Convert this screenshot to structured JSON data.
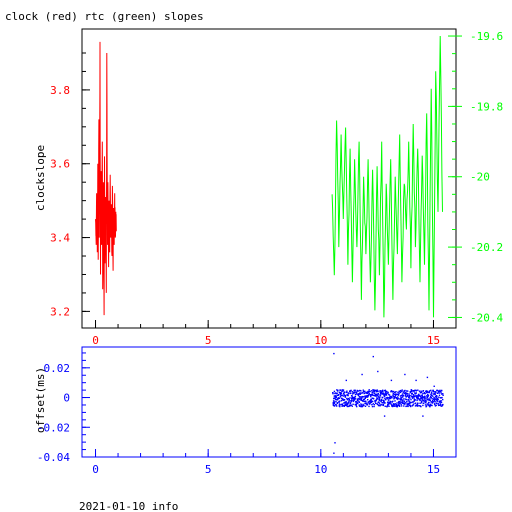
{
  "chart_data": [
    {
      "type": "line",
      "title": "clock (red) rtc (green) slopes",
      "xlabel": "",
      "ylabel": "clockslope",
      "x_ticks": [
        0,
        5,
        10,
        15
      ],
      "xlim": [
        -0.6,
        16
      ],
      "y_ticks_left": [
        3.2,
        3.4,
        3.6,
        3.8
      ],
      "ylim_left": [
        3.155,
        3.965
      ],
      "y_ticks_right": [
        -19.6,
        -19.8,
        -20,
        -20.2,
        -20.4
      ],
      "ylim_right": [
        -20.43,
        -19.58
      ],
      "grid": false,
      "legend": "none",
      "series": [
        {
          "name": "clock",
          "color": "#ff0000",
          "axis": "left",
          "x_range": [
            0,
            0.95
          ],
          "points": [
            [
              0.0,
              3.45
            ],
            [
              0.03,
              3.38
            ],
            [
              0.05,
              3.52
            ],
            [
              0.08,
              3.36
            ],
            [
              0.1,
              3.6
            ],
            [
              0.12,
              3.34
            ],
            [
              0.15,
              3.72
            ],
            [
              0.17,
              3.4
            ],
            [
              0.2,
              3.93
            ],
            [
              0.22,
              3.3
            ],
            [
              0.25,
              3.58
            ],
            [
              0.27,
              3.38
            ],
            [
              0.3,
              3.66
            ],
            [
              0.32,
              3.26
            ],
            [
              0.35,
              3.55
            ],
            [
              0.38,
              3.19
            ],
            [
              0.4,
              3.62
            ],
            [
              0.42,
              3.33
            ],
            [
              0.45,
              3.51
            ],
            [
              0.48,
              3.25
            ],
            [
              0.5,
              3.9
            ],
            [
              0.53,
              3.38
            ],
            [
              0.55,
              3.55
            ],
            [
              0.58,
              3.32
            ],
            [
              0.6,
              3.5
            ],
            [
              0.63,
              3.36
            ],
            [
              0.65,
              3.57
            ],
            [
              0.68,
              3.4
            ],
            [
              0.7,
              3.49
            ],
            [
              0.73,
              3.35
            ],
            [
              0.75,
              3.54
            ],
            [
              0.78,
              3.31
            ],
            [
              0.8,
              3.48
            ],
            [
              0.83,
              3.38
            ],
            [
              0.85,
              3.52
            ],
            [
              0.88,
              3.4
            ],
            [
              0.9,
              3.47
            ],
            [
              0.93,
              3.42
            ]
          ]
        },
        {
          "name": "rtc",
          "color": "#00ff00",
          "axis": "right",
          "x_range": [
            10.5,
            15.4
          ],
          "points": [
            [
              10.5,
              -20.05
            ],
            [
              10.6,
              -20.28
            ],
            [
              10.7,
              -19.84
            ],
            [
              10.8,
              -20.2
            ],
            [
              10.9,
              -19.88
            ],
            [
              11.0,
              -20.12
            ],
            [
              11.1,
              -19.86
            ],
            [
              11.2,
              -20.25
            ],
            [
              11.3,
              -19.92
            ],
            [
              11.4,
              -20.3
            ],
            [
              11.5,
              -19.95
            ],
            [
              11.6,
              -20.2
            ],
            [
              11.7,
              -19.9
            ],
            [
              11.8,
              -20.35
            ],
            [
              11.9,
              -20.0
            ],
            [
              12.0,
              -20.22
            ],
            [
              12.1,
              -19.95
            ],
            [
              12.2,
              -20.3
            ],
            [
              12.3,
              -19.98
            ],
            [
              12.4,
              -20.38
            ],
            [
              12.5,
              -19.97
            ],
            [
              12.6,
              -20.28
            ],
            [
              12.7,
              -19.9
            ],
            [
              12.8,
              -20.4
            ],
            [
              12.9,
              -20.02
            ],
            [
              13.0,
              -20.25
            ],
            [
              13.1,
              -19.95
            ],
            [
              13.2,
              -20.35
            ],
            [
              13.3,
              -20.0
            ],
            [
              13.4,
              -20.22
            ],
            [
              13.5,
              -19.88
            ],
            [
              13.6,
              -20.3
            ],
            [
              13.7,
              -20.02
            ],
            [
              13.8,
              -20.15
            ],
            [
              13.9,
              -19.9
            ],
            [
              14.0,
              -20.26
            ],
            [
              14.1,
              -19.85
            ],
            [
              14.2,
              -20.2
            ],
            [
              14.3,
              -19.92
            ],
            [
              14.4,
              -20.3
            ],
            [
              14.5,
              -19.94
            ],
            [
              14.6,
              -20.25
            ],
            [
              14.7,
              -19.82
            ],
            [
              14.8,
              -20.38
            ],
            [
              14.9,
              -19.75
            ],
            [
              15.0,
              -20.4
            ],
            [
              15.1,
              -19.7
            ],
            [
              15.2,
              -20.1
            ],
            [
              15.3,
              -19.6
            ],
            [
              15.4,
              -20.1
            ]
          ]
        }
      ]
    },
    {
      "type": "scatter",
      "title": "",
      "xlabel": "",
      "ylabel": "offset(ms)",
      "x_ticks": [
        0,
        5,
        10,
        15
      ],
      "xlim": [
        -0.6,
        16
      ],
      "y_ticks": [
        0.02,
        0,
        -0.02,
        -0.04
      ],
      "ylim": [
        -0.04,
        0.034
      ],
      "grid": false,
      "legend": "none",
      "series": [
        {
          "name": "offset",
          "color": "#0000ff",
          "x_range": [
            10.5,
            15.4
          ],
          "band": [
            -0.006,
            0.006
          ],
          "outliers": [
            [
              10.55,
              0.03
            ],
            [
              10.6,
              -0.03
            ],
            [
              10.55,
              -0.037
            ],
            [
              11.1,
              0.012
            ],
            [
              11.8,
              0.016
            ],
            [
              12.3,
              0.028
            ],
            [
              12.5,
              0.018
            ],
            [
              12.8,
              -0.012
            ],
            [
              13.1,
              0.012
            ],
            [
              13.7,
              0.016
            ],
            [
              14.2,
              0.012
            ],
            [
              14.5,
              -0.012
            ],
            [
              14.7,
              0.014
            ],
            [
              15.0,
              0.008
            ]
          ]
        }
      ]
    }
  ],
  "footer": {
    "date": "2021-01-10 info"
  },
  "colors": {
    "clock": "#ff0000",
    "rtc": "#00ff00",
    "offset": "#0000ff",
    "axes": "#000000",
    "bottom_axes": "#0000ff"
  }
}
